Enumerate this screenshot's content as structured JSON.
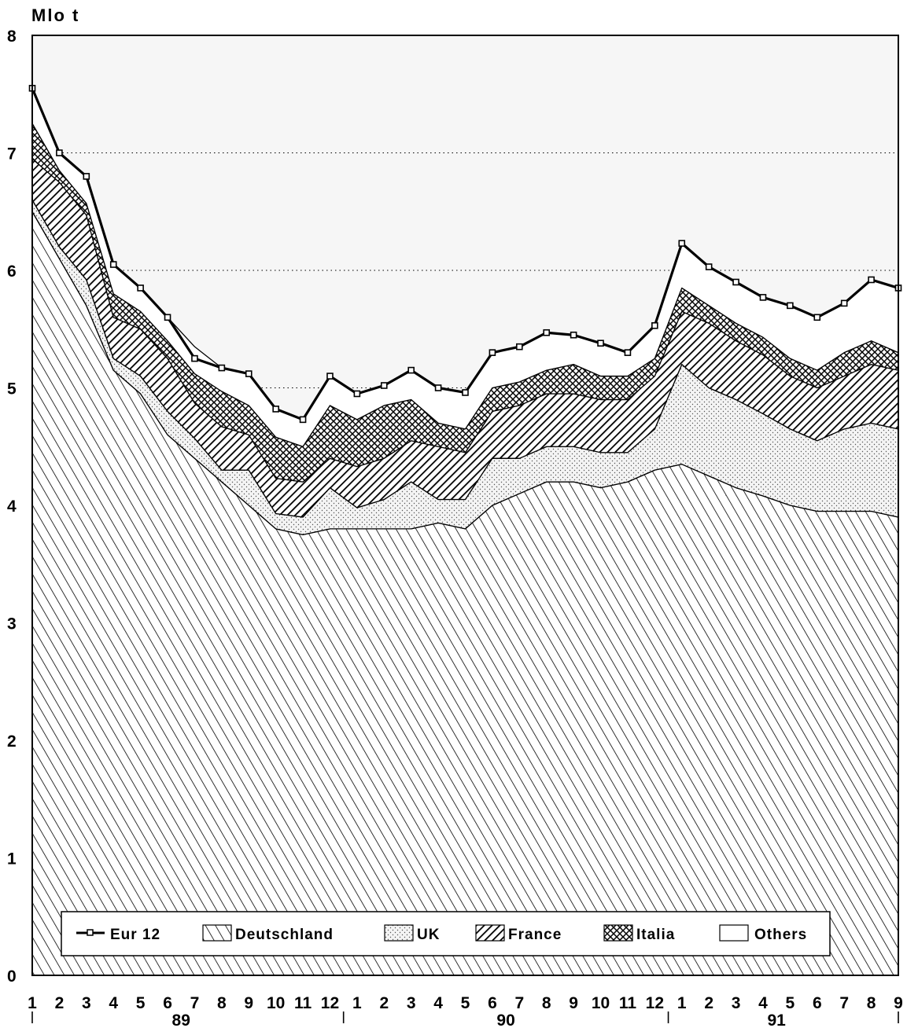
{
  "chart_data": {
    "type": "area",
    "ylabel": "Mlo t",
    "ylim": [
      0,
      8
    ],
    "yticks": [
      "0",
      "1",
      "2",
      "3",
      "4",
      "5",
      "6",
      "7",
      "8"
    ],
    "grid": "dotted horizontal",
    "legend_position": "bottom",
    "x_month_labels": [
      "1",
      "2",
      "3",
      "4",
      "5",
      "6",
      "7",
      "8",
      "9",
      "10",
      "11",
      "12",
      "1",
      "2",
      "3",
      "4",
      "5",
      "6",
      "7",
      "8",
      "9",
      "10",
      "11",
      "12",
      "1",
      "2",
      "3",
      "4",
      "5",
      "6",
      "7",
      "8",
      "9"
    ],
    "x_year_labels": [
      "89",
      "90",
      "91"
    ],
    "stack_order": [
      "Deutschland",
      "UK",
      "France",
      "Italia",
      "Others"
    ],
    "series": [
      {
        "name": "Eur 12",
        "kind": "line",
        "values": [
          7.55,
          7.0,
          6.8,
          6.05,
          5.85,
          5.6,
          5.25,
          5.17,
          5.12,
          4.82,
          4.73,
          5.1,
          4.95,
          5.02,
          5.15,
          5.0,
          4.96,
          5.3,
          5.35,
          5.47,
          5.45,
          5.38,
          5.3,
          5.53,
          6.23,
          6.03,
          5.9,
          5.77,
          5.7,
          5.6,
          5.72,
          5.92,
          5.85
        ]
      },
      {
        "name": "Deutschland",
        "kind": "stack",
        "values": [
          6.5,
          6.1,
          5.7,
          5.15,
          4.95,
          4.6,
          4.4,
          4.2,
          4.0,
          3.8,
          3.75,
          3.8,
          3.8,
          3.8,
          3.8,
          3.85,
          3.8,
          4.0,
          4.1,
          4.2,
          4.2,
          4.15,
          4.2,
          4.3,
          4.35,
          4.25,
          4.15,
          4.08,
          4.0,
          3.95,
          3.95,
          3.95,
          3.9
        ]
      },
      {
        "name": "UK",
        "kind": "stack",
        "values": [
          0.1,
          0.1,
          0.22,
          0.1,
          0.15,
          0.2,
          0.17,
          0.1,
          0.3,
          0.13,
          0.15,
          0.35,
          0.18,
          0.25,
          0.4,
          0.2,
          0.25,
          0.4,
          0.3,
          0.3,
          0.3,
          0.3,
          0.25,
          0.35,
          0.85,
          0.75,
          0.75,
          0.7,
          0.65,
          0.6,
          0.7,
          0.75,
          0.75
        ]
      },
      {
        "name": "France",
        "kind": "stack",
        "values": [
          0.35,
          0.55,
          0.55,
          0.35,
          0.4,
          0.45,
          0.3,
          0.37,
          0.3,
          0.3,
          0.3,
          0.25,
          0.35,
          0.35,
          0.35,
          0.45,
          0.4,
          0.4,
          0.45,
          0.45,
          0.45,
          0.45,
          0.45,
          0.45,
          0.45,
          0.55,
          0.5,
          0.5,
          0.45,
          0.45,
          0.45,
          0.5,
          0.5
        ]
      },
      {
        "name": "Italia",
        "kind": "stack",
        "values": [
          0.3,
          0.1,
          0.1,
          0.2,
          0.15,
          0.15,
          0.25,
          0.3,
          0.25,
          0.35,
          0.3,
          0.45,
          0.4,
          0.45,
          0.35,
          0.2,
          0.2,
          0.2,
          0.2,
          0.2,
          0.25,
          0.2,
          0.2,
          0.15,
          0.2,
          0.15,
          0.15,
          0.15,
          0.15,
          0.15,
          0.2,
          0.2,
          0.15
        ]
      },
      {
        "name": "Others",
        "kind": "stack",
        "values": [
          0.3,
          0.15,
          0.23,
          0.25,
          0.2,
          0.2,
          0.23,
          0.2,
          0.27,
          0.24,
          0.23,
          0.25,
          0.22,
          0.17,
          0.25,
          0.3,
          0.31,
          0.3,
          0.3,
          0.32,
          0.25,
          0.28,
          0.2,
          0.28,
          0.38,
          0.33,
          0.35,
          0.34,
          0.45,
          0.45,
          0.42,
          0.52,
          0.55
        ]
      }
    ]
  }
}
